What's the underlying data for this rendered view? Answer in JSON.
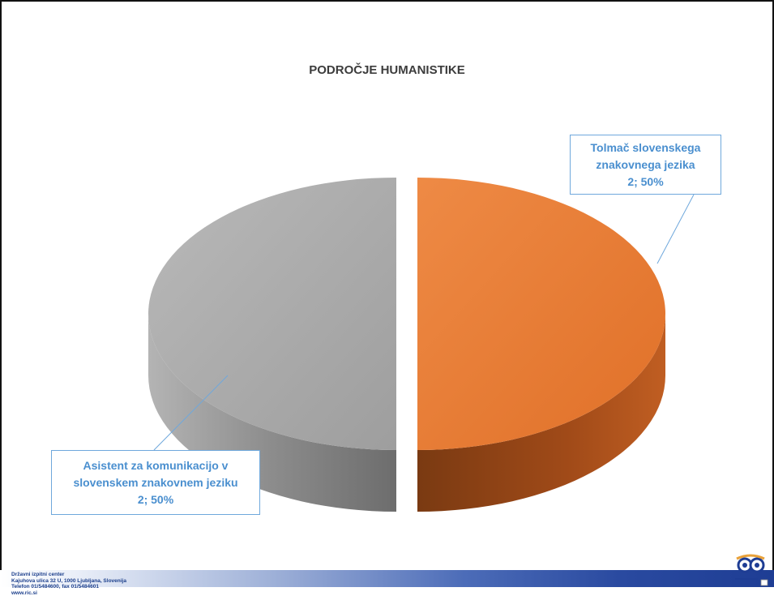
{
  "chart_data": {
    "type": "pie",
    "title": "PODROČJE HUMANISTIKE",
    "slices": [
      {
        "name": "Tolmač slovenskega znakovnega jezika",
        "value": 2,
        "percent": 50,
        "color": "#e67a34",
        "label_lines": [
          "Tolmač slovenskega",
          "znakovnega jezika",
          "2; 50%"
        ]
      },
      {
        "name": "Asistent za komunikacijo v slovenskem znakovnem jeziku",
        "value": 2,
        "percent": 50,
        "color": "#a6a6a6",
        "label_lines": [
          "Asistent za komunikacijo v",
          "slovenskem znakovnem jeziku",
          "2; 50%"
        ]
      }
    ]
  },
  "footer": {
    "lines": [
      "Državni izpitni center",
      "Kajuhova ulica 32 U, 1000 Ljubljana, Slovenija",
      "Telefon 01/5484600, fax 01/5484601",
      "www.ric.si"
    ],
    "logo_icon": "ric-logo-icon"
  }
}
